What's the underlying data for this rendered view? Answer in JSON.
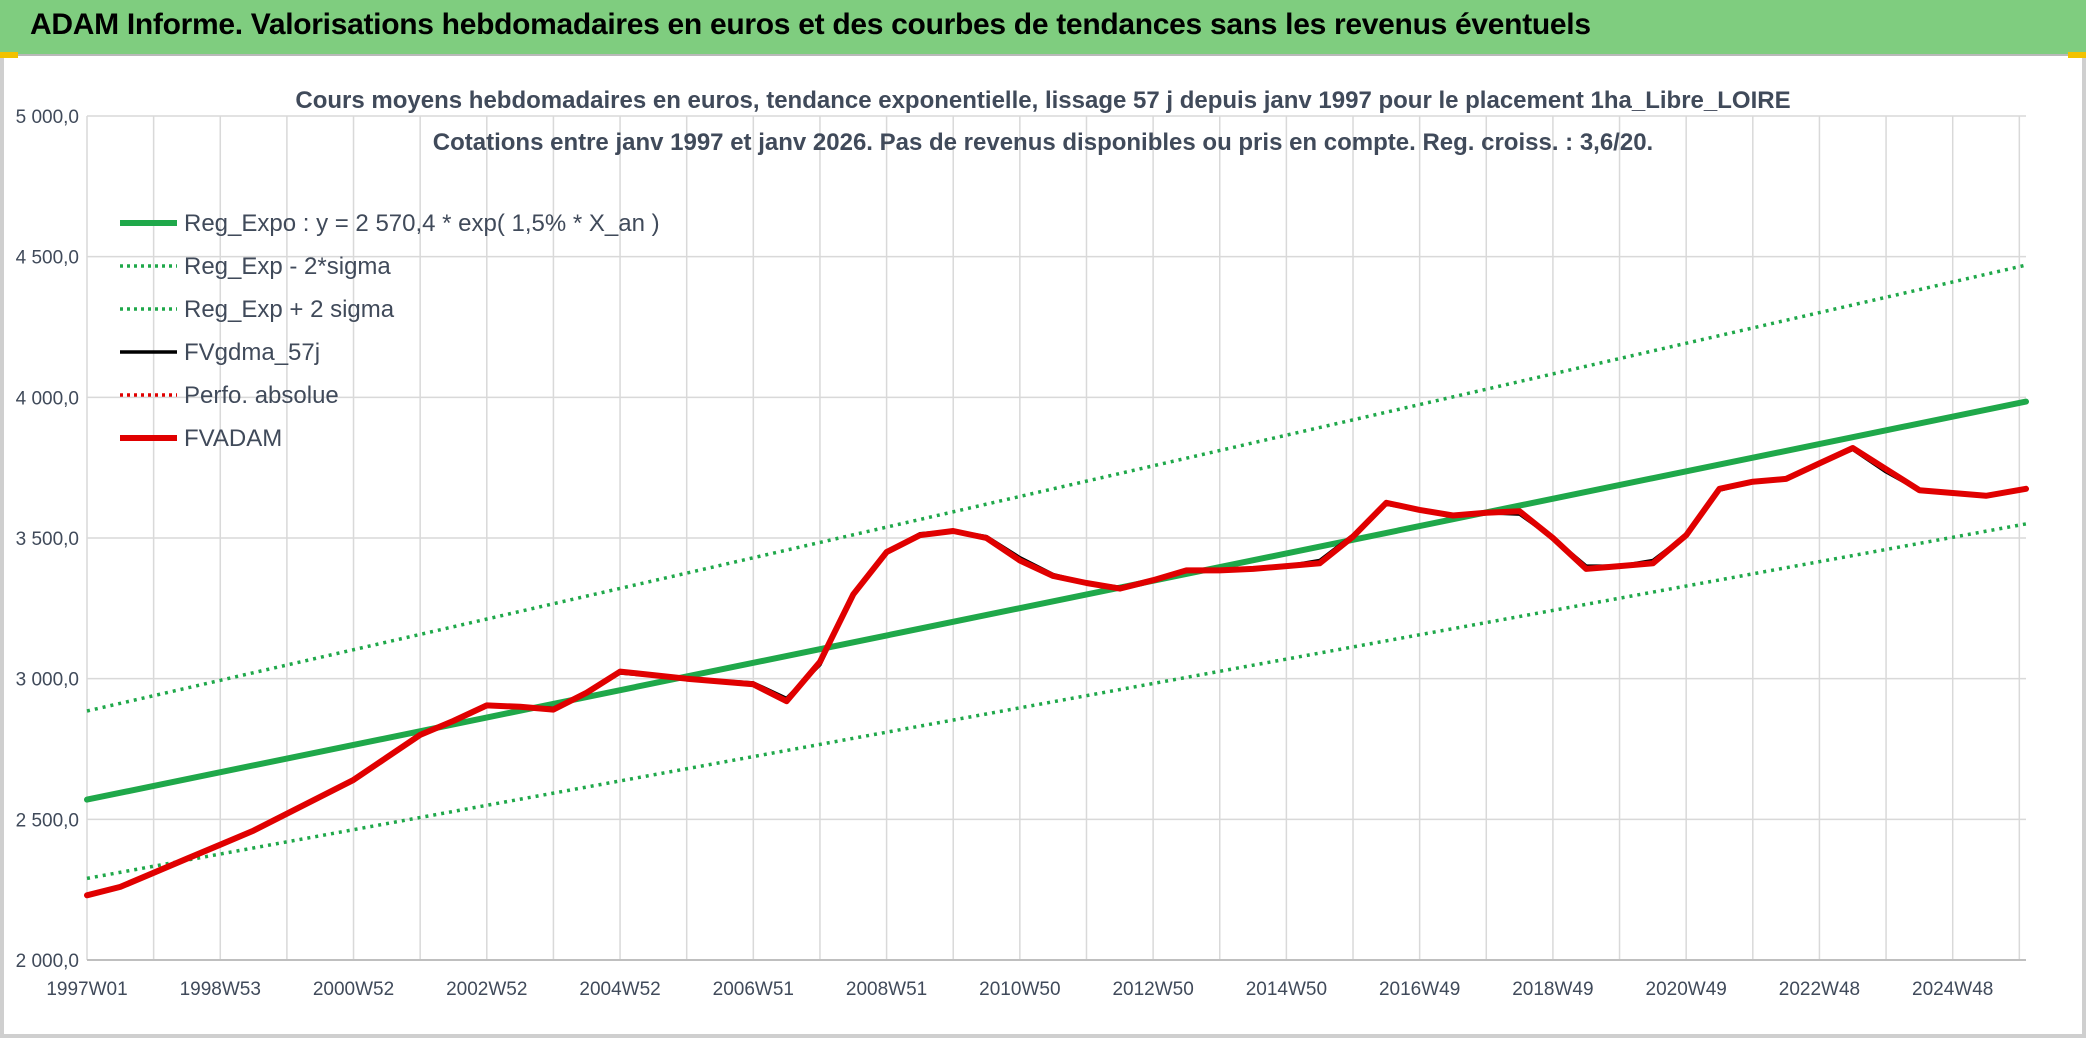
{
  "banner": {
    "title": "ADAM Informe. Valorisations hebdomadaires en euros et des courbes de tendances sans les revenus éventuels"
  },
  "colors": {
    "banner_bg": "#7fcd7f",
    "trend": "#1fa84a",
    "sigma": "#1fa84a",
    "fvgdma": "#000000",
    "perfo": "#e00000",
    "fvadam": "#e00000",
    "grid": "#d9d9d9",
    "text": "#404a5a"
  },
  "chart_data": {
    "type": "line",
    "title": "Cours moyens hebdomadaires en euros, tendance exponentielle, lissage 57 j depuis janv 1997 pour le placement 1ha_Libre_LOIRE",
    "subtitle": "Cotations entre janv 1997 et janv 2026. Pas de revenus disponibles ou pris en compte. Reg. croiss. : 3,6/20.",
    "xlabel": "",
    "ylabel": "",
    "xlim": [
      1997.0,
      2026.1
    ],
    "ylim": [
      2000,
      5000
    ],
    "yticks": [
      2000,
      2500,
      3000,
      3500,
      4000,
      4500,
      5000
    ],
    "ytick_labels": [
      "2 000,0",
      "2 500,0",
      "3 000,0",
      "3 500,0",
      "4 000,0",
      "4 500,0",
      "5 000,0"
    ],
    "xticks": [
      1997.0,
      1999.0,
      2001.0,
      2003.0,
      2005.0,
      2007.0,
      2009.0,
      2011.0,
      2013.0,
      2015.0,
      2017.0,
      2019.0,
      2021.0,
      2023.0,
      2025.0
    ],
    "xtick_labels": [
      "1997W01",
      "1998W53",
      "2000W52",
      "2002W52",
      "2004W52",
      "2006W51",
      "2008W51",
      "2010W50",
      "2012W50",
      "2014W50",
      "2016W49",
      "2018W49",
      "2020W49",
      "2022W48",
      "2024W48"
    ],
    "legend_position": "top-left",
    "series": [
      {
        "name": "Reg_Expo : y = 2 570,4 * exp( 1,5% *  X_an )",
        "style": "solid-thick",
        "color": "#1fa84a",
        "x": [
          1997.0,
          2026.1
        ],
        "values": [
          2570,
          3985
        ]
      },
      {
        "name": "Reg_Exp - 2*sigma",
        "style": "dotted",
        "color": "#1fa84a",
        "x": [
          1997.0,
          2026.1
        ],
        "values": [
          2290,
          3550
        ]
      },
      {
        "name": "Reg_Exp + 2 sigma",
        "style": "dotted",
        "color": "#1fa84a",
        "x": [
          1997.0,
          2026.1
        ],
        "values": [
          2885,
          4470
        ]
      },
      {
        "name": "FVgdma_57j",
        "style": "solid",
        "color": "#000000",
        "x": [
          1997.0,
          1997.5,
          1998.0,
          1998.5,
          1999.0,
          1999.5,
          2000.0,
          2000.5,
          2001.0,
          2001.5,
          2002.0,
          2002.5,
          2003.0,
          2003.5,
          2004.0,
          2004.5,
          2005.0,
          2006.0,
          2007.0,
          2007.5,
          2008.0,
          2008.5,
          2009.0,
          2009.5,
          2010.0,
          2010.5,
          2011.0,
          2011.5,
          2012.0,
          2012.5,
          2013.0,
          2013.5,
          2014.0,
          2014.5,
          2015.0,
          2015.5,
          2016.0,
          2016.5,
          2017.0,
          2017.5,
          2018.0,
          2018.5,
          2019.0,
          2019.5,
          2020.0,
          2020.5,
          2021.0,
          2021.5,
          2022.0,
          2022.5,
          2023.0,
          2023.5,
          2024.0,
          2024.5,
          2025.0,
          2025.5,
          2026.1
        ],
        "values": [
          2230,
          2260,
          2310,
          2360,
          2410,
          2460,
          2520,
          2580,
          2640,
          2720,
          2800,
          2850,
          2905,
          2900,
          2895,
          2950,
          3020,
          3000,
          2985,
          2930,
          3050,
          3300,
          3450,
          3515,
          3525,
          3505,
          3430,
          3370,
          3340,
          3325,
          3350,
          3385,
          3385,
          3390,
          3400,
          3420,
          3510,
          3620,
          3600,
          3580,
          3590,
          3585,
          3500,
          3400,
          3400,
          3420,
          3510,
          3670,
          3700,
          3710,
          3765,
          3815,
          3735,
          3670,
          3660,
          3650,
          3675
        ]
      },
      {
        "name": "Perfo. absolue",
        "style": "dotted",
        "color": "#e00000",
        "x": [],
        "values": []
      },
      {
        "name": "FVADAM",
        "style": "solid-thick",
        "color": "#e00000",
        "x": [
          1997.0,
          1997.5,
          1998.0,
          1998.5,
          1999.0,
          1999.5,
          2000.0,
          2000.5,
          2001.0,
          2001.5,
          2002.0,
          2002.5,
          2003.0,
          2003.5,
          2004.0,
          2004.5,
          2005.0,
          2006.0,
          2007.0,
          2007.5,
          2008.0,
          2008.5,
          2009.0,
          2009.5,
          2010.0,
          2010.5,
          2011.0,
          2011.5,
          2012.0,
          2012.5,
          2013.0,
          2013.5,
          2014.0,
          2014.5,
          2015.0,
          2015.5,
          2016.0,
          2016.5,
          2017.0,
          2017.5,
          2018.0,
          2018.5,
          2019.0,
          2019.5,
          2020.0,
          2020.5,
          2021.0,
          2021.5,
          2022.0,
          2022.5,
          2023.0,
          2023.5,
          2024.0,
          2024.5,
          2025.0,
          2025.5,
          2026.1
        ],
        "values": [
          2230,
          2260,
          2310,
          2360,
          2410,
          2460,
          2520,
          2580,
          2640,
          2720,
          2800,
          2850,
          2905,
          2900,
          2890,
          2950,
          3025,
          3000,
          2980,
          2920,
          3060,
          3300,
          3450,
          3510,
          3525,
          3500,
          3420,
          3365,
          3340,
          3320,
          3350,
          3385,
          3385,
          3390,
          3400,
          3410,
          3505,
          3625,
          3600,
          3580,
          3590,
          3595,
          3500,
          3390,
          3400,
          3410,
          3510,
          3675,
          3700,
          3710,
          3765,
          3820,
          3745,
          3670,
          3660,
          3650,
          3675
        ]
      }
    ]
  }
}
